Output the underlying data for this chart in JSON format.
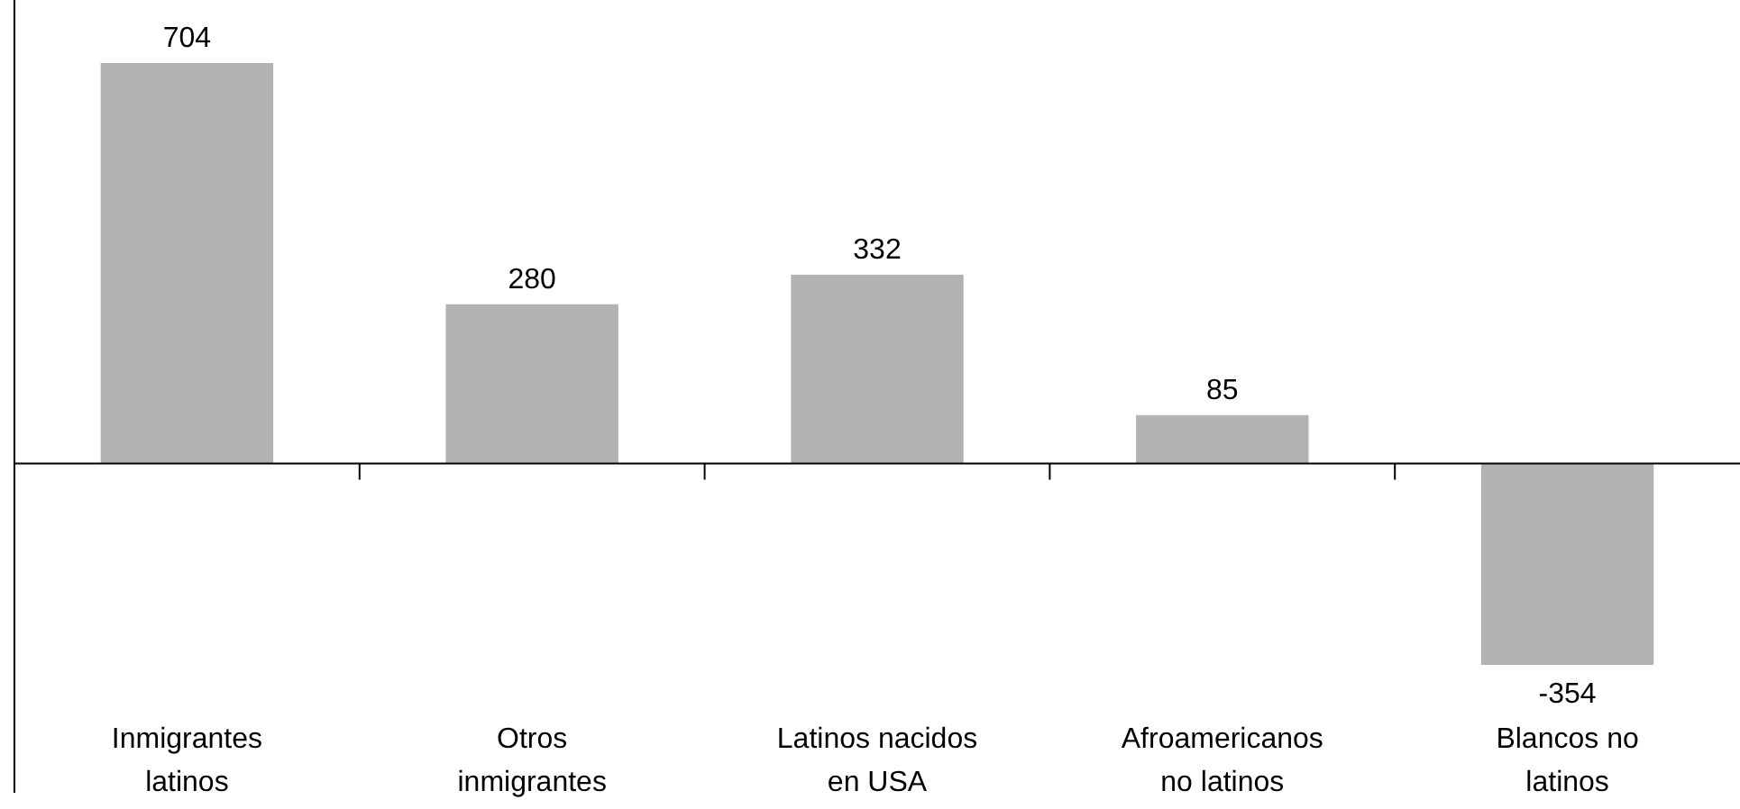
{
  "chart_data": {
    "type": "bar",
    "categories": [
      "Inmigrantes latinos",
      "Otros inmigrantes",
      "Latinos nacidos en USA",
      "Afroamericanos no latinos",
      "Blancos no latinos"
    ],
    "values": [
      704,
      280,
      332,
      85,
      -354
    ],
    "color": "#b2b2b2",
    "data_labels": true
  }
}
